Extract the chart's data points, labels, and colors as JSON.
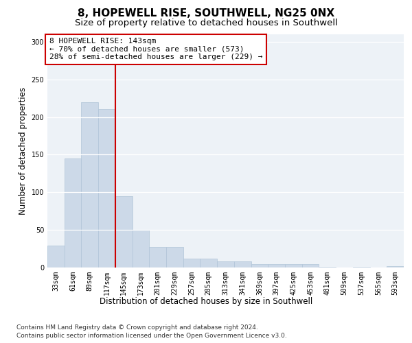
{
  "title": "8, HOPEWELL RISE, SOUTHWELL, NG25 0NX",
  "subtitle": "Size of property relative to detached houses in Southwell",
  "xlabel": "Distribution of detached houses by size in Southwell",
  "ylabel": "Number of detached properties",
  "bar_color": "#ccd9e8",
  "bar_edge_color": "#b0c4d8",
  "property_line_color": "#cc0000",
  "annotation_line1": "8 HOPEWELL RISE: 143sqm",
  "annotation_line2": "← 70% of detached houses are smaller (573)",
  "annotation_line3": "28% of semi-detached houses are larger (229) →",
  "annotation_box_color": "#ffffff",
  "annotation_box_edge": "#cc0000",
  "categories": [
    "33sqm",
    "61sqm",
    "89sqm",
    "117sqm",
    "145sqm",
    "173sqm",
    "201sqm",
    "229sqm",
    "257sqm",
    "285sqm",
    "313sqm",
    "341sqm",
    "369sqm",
    "397sqm",
    "425sqm",
    "453sqm",
    "481sqm",
    "509sqm",
    "537sqm",
    "565sqm",
    "593sqm"
  ],
  "values": [
    29,
    145,
    220,
    211,
    95,
    50,
    27,
    27,
    12,
    12,
    8,
    8,
    5,
    5,
    5,
    5,
    1,
    0,
    1,
    0,
    2
  ],
  "ylim": [
    0,
    310
  ],
  "yticks": [
    0,
    50,
    100,
    150,
    200,
    250,
    300
  ],
  "bg_color": "#edf2f7",
  "footer1": "Contains HM Land Registry data © Crown copyright and database right 2024.",
  "footer2": "Contains public sector information licensed under the Open Government Licence v3.0.",
  "title_fontsize": 11,
  "subtitle_fontsize": 9.5,
  "axis_label_fontsize": 8.5,
  "tick_fontsize": 7,
  "annotation_fontsize": 8,
  "footer_fontsize": 6.5
}
